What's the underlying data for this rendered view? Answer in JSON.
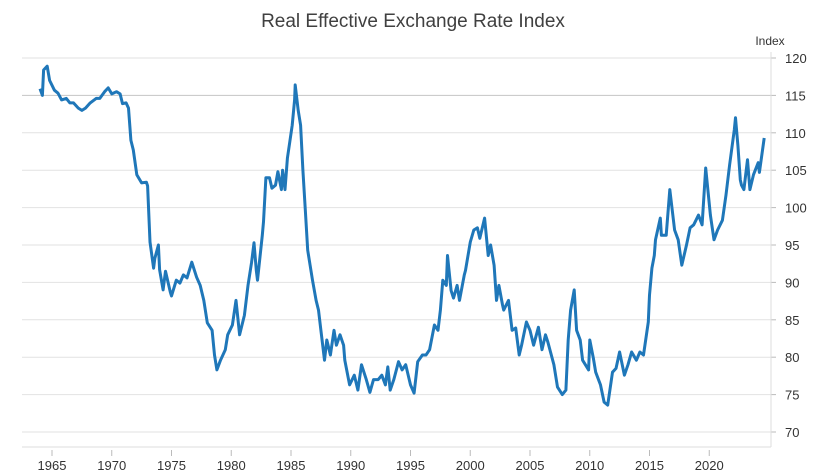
{
  "chart_data": {
    "type": "line",
    "title": "Real Effective Exchange Rate Index",
    "ylabel": "Index",
    "xlabel": "",
    "ylim": [
      70,
      120
    ],
    "xlim": [
      1964,
      2025.2
    ],
    "y_axis_position": "right",
    "grid": true,
    "line_color": "#1f77b9",
    "x_ticks": [
      "1965",
      "1970",
      "1975",
      "1980",
      "1985",
      "1990",
      "1995",
      "2000",
      "2005",
      "2010",
      "2015",
      "2020"
    ],
    "y_ticks": [
      "70",
      "75",
      "80",
      "85",
      "90",
      "95",
      "100",
      "105",
      "110",
      "115",
      "120"
    ],
    "series": [
      {
        "x": [
          1964.0,
          1964.2,
          1964.3,
          1964.6,
          1964.8,
          1965.2,
          1965.5,
          1965.8,
          1966.2,
          1966.5,
          1966.8,
          1967.2,
          1967.5,
          1967.8,
          1968.2,
          1968.7,
          1969.0,
          1969.4,
          1969.7,
          1970.0,
          1970.4,
          1970.7,
          1970.9,
          1971.2,
          1971.4,
          1971.6,
          1971.8,
          1972.1,
          1972.5,
          1972.9,
          1973.0,
          1973.2,
          1973.5,
          1973.6,
          1973.9,
          1974.0,
          1974.3,
          1974.5,
          1974.9,
          1975.0,
          1975.4,
          1975.7,
          1976.0,
          1976.3,
          1976.7,
          1977.1,
          1977.4,
          1977.7,
          1978.0,
          1978.4,
          1978.6,
          1978.8,
          1979.1,
          1979.5,
          1979.7,
          1980.1,
          1980.4,
          1980.7,
          1981.1,
          1981.4,
          1981.7,
          1981.9,
          1982.1,
          1982.2,
          1982.6,
          1982.7,
          1982.9,
          1983.2,
          1983.4,
          1983.7,
          1983.9,
          1984.2,
          1984.3,
          1984.5,
          1984.7,
          1984.9,
          1985.1,
          1985.3,
          1985.35,
          1985.6,
          1985.8,
          1986.0,
          1986.2,
          1986.4,
          1986.6,
          1986.8,
          1987.1,
          1987.3,
          1987.5,
          1987.8,
          1988.0,
          1988.3,
          1988.6,
          1988.8,
          1989.1,
          1989.4,
          1989.5,
          1989.9,
          1990.3,
          1990.6,
          1990.9,
          1991.3,
          1991.6,
          1991.9,
          1992.3,
          1992.6,
          1992.9,
          1993.1,
          1993.3,
          1993.6,
          1994.0,
          1994.3,
          1994.6,
          1995.0,
          1995.3,
          1995.6,
          1996.0,
          1996.3,
          1996.6,
          1997.0,
          1997.3,
          1997.5,
          1997.7,
          1998.0,
          1998.1,
          1998.4,
          1998.6,
          1998.9,
          1999.1,
          1999.5,
          1999.6,
          2000.0,
          2000.3,
          2000.6,
          2000.8,
          2001.2,
          2001.5,
          2001.7,
          2002.0,
          2002.2,
          2002.4,
          2002.7,
          2002.8,
          2003.2,
          2003.5,
          2003.8,
          2004.1,
          2004.3,
          2004.7,
          2005.0,
          2005.3,
          2005.7,
          2006.0,
          2006.3,
          2006.5,
          2007.0,
          2007.3,
          2007.7,
          2008.0,
          2008.2,
          2008.4,
          2008.7,
          2008.9,
          2009.2,
          2009.4,
          2009.9,
          2010.0,
          2010.3,
          2010.5,
          2010.9,
          2011.2,
          2011.5,
          2011.9,
          2012.2,
          2012.5,
          2012.9,
          2013.2,
          2013.5,
          2013.9,
          2014.2,
          2014.5,
          2014.9,
          2015.0,
          2015.2,
          2015.4,
          2015.5,
          2015.9,
          2016.0,
          2016.4,
          2016.7,
          2017.1,
          2017.4,
          2017.7,
          2018.1,
          2018.4,
          2018.7,
          2019.1,
          2019.4,
          2019.7,
          2020.1,
          2020.4,
          2020.7,
          2021.1,
          2021.4,
          2021.7,
          2022.1,
          2022.2,
          2022.4,
          2022.6,
          2022.7,
          2022.9,
          2023.2,
          2023.4,
          2023.7,
          2024.1,
          2024.2,
          2024.6
        ],
        "values": [
          115.9,
          115,
          118.4,
          118.9,
          117,
          115.7,
          115.3,
          114.4,
          114.6,
          114,
          114,
          113.3,
          113,
          113.3,
          114,
          114.6,
          114.6,
          115.5,
          116,
          115.2,
          115.5,
          115.2,
          113.9,
          114,
          113.3,
          109,
          107.7,
          104.4,
          103.3,
          103.4,
          102.9,
          95.4,
          91.9,
          93.2,
          95,
          91.7,
          89,
          91.5,
          88.7,
          88.2,
          90.3,
          89.9,
          91,
          90.6,
          92.7,
          90.7,
          89.6,
          87.6,
          84.6,
          83.6,
          80.3,
          78.3,
          79.6,
          81,
          83,
          84.3,
          87.6,
          83,
          85.6,
          89.6,
          92.7,
          95.3,
          91.6,
          90.3,
          96.3,
          98.1,
          104,
          104,
          102.6,
          103,
          104.8,
          102.4,
          105,
          102.4,
          106.6,
          108.8,
          111,
          114.4,
          116.4,
          113,
          111,
          105,
          99.7,
          94.3,
          92.3,
          90.3,
          87.6,
          86.3,
          83.6,
          79.6,
          82.3,
          80.3,
          83.6,
          81.6,
          83,
          81.6,
          79.6,
          76.3,
          77.6,
          75.6,
          79,
          77,
          75.3,
          77,
          77,
          77.6,
          76.3,
          78.7,
          75.6,
          77,
          79.4,
          78.3,
          79,
          76.3,
          75.2,
          79.4,
          80.3,
          80.3,
          81,
          84.3,
          83.6,
          86.3,
          90.3,
          89.6,
          93.6,
          88.9,
          87.9,
          89.6,
          87.6,
          91,
          91.6,
          95.4,
          97,
          97.3,
          95.9,
          98.6,
          93.6,
          95,
          92.3,
          87.6,
          89.6,
          87,
          86.3,
          87.6,
          83.6,
          83.9,
          80.3,
          81.6,
          84.7,
          83.6,
          81.6,
          84,
          81,
          83,
          82,
          79,
          76,
          75,
          75.6,
          82.3,
          86.3,
          89,
          83.6,
          82.3,
          79.6,
          78.3,
          82.3,
          79.9,
          78,
          76.3,
          74,
          73.6,
          78,
          78.5,
          80.7,
          77.6,
          79,
          80.7,
          79.6,
          80.7,
          80.3,
          84.7,
          88.3,
          91.9,
          93.6,
          95.7,
          98.6,
          96.3,
          96.3,
          102.4,
          97,
          95.7,
          92.3,
          95,
          97.3,
          97.7,
          99,
          97.7,
          105.3,
          99,
          95.7,
          97,
          98.3,
          101.7,
          105.7,
          110.4,
          112,
          108.3,
          103.7,
          103,
          102.4,
          106.4,
          102.4,
          104.4,
          106,
          104.7,
          109.3
        ]
      }
    ]
  }
}
